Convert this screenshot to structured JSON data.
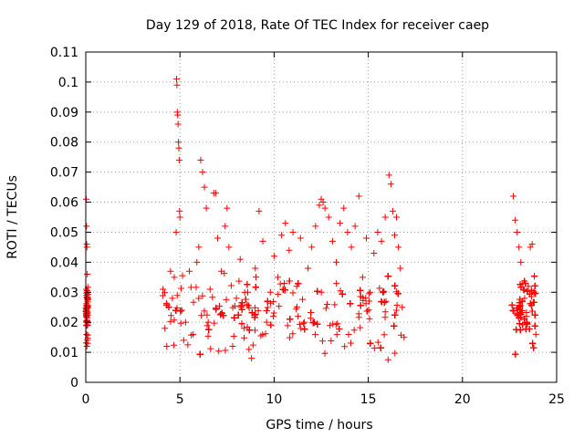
{
  "chart_data": {
    "type": "scatter",
    "title": "Day 129 of 2018, Rate Of TEC Index for receiver caep",
    "xlabel": "GPS time / hours",
    "ylabel": "ROTI / TECUs",
    "xlim": [
      0,
      25
    ],
    "ylim": [
      0,
      0.11
    ],
    "xticks": [
      0,
      5,
      10,
      15,
      20,
      25
    ],
    "xtick_labels": [
      "0",
      "5",
      "10",
      "15",
      "20",
      "25"
    ],
    "yticks": [
      0,
      0.01,
      0.02,
      0.03,
      0.04,
      0.05,
      0.06,
      0.07,
      0.08,
      0.09,
      0.1,
      0.11
    ],
    "ytick_labels": [
      "0",
      "0.01",
      "0.02",
      "0.03",
      "0.04",
      "0.05",
      "0.06",
      "0.07",
      "0.08",
      "0.09",
      "0.1",
      "0.11"
    ],
    "grid": true,
    "marker": "+",
    "series_color": "#ff0000",
    "series": [
      {
        "name": "ROTI",
        "points": [
          [
            0.02,
            0.061
          ],
          [
            0.04,
            0.052
          ],
          [
            0.05,
            0.046
          ],
          [
            0.06,
            0.045
          ],
          [
            0.08,
            0.036
          ],
          [
            0.03,
            0.031
          ],
          [
            0.07,
            0.028
          ],
          [
            0.1,
            0.025
          ],
          [
            0.05,
            0.022
          ],
          [
            0.09,
            0.019
          ],
          [
            0.04,
            0.016
          ],
          [
            0.08,
            0.014
          ],
          [
            0.06,
            0.012
          ],
          [
            0.03,
            0.02
          ],
          [
            0.1,
            0.013
          ],
          [
            4.1,
            0.031
          ],
          [
            4.2,
            0.018
          ],
          [
            4.3,
            0.012
          ],
          [
            4.4,
            0.025
          ],
          [
            4.5,
            0.037
          ],
          [
            4.6,
            0.028
          ],
          [
            4.7,
            0.035
          ],
          [
            4.8,
            0.05
          ],
          [
            4.82,
            0.101
          ],
          [
            4.84,
            0.099
          ],
          [
            4.86,
            0.09
          ],
          [
            4.88,
            0.089
          ],
          [
            4.9,
            0.086
          ],
          [
            4.92,
            0.08
          ],
          [
            4.94,
            0.078
          ],
          [
            4.96,
            0.074
          ],
          [
            4.98,
            0.057
          ],
          [
            5.0,
            0.055
          ],
          [
            5.1,
            0.024
          ],
          [
            5.2,
            0.014
          ],
          [
            5.3,
            0.02
          ],
          [
            5.5,
            0.037
          ],
          [
            5.7,
            0.016
          ],
          [
            5.9,
            0.04
          ],
          [
            6.0,
            0.045
          ],
          [
            6.1,
            0.074
          ],
          [
            6.2,
            0.07
          ],
          [
            6.3,
            0.065
          ],
          [
            6.4,
            0.058
          ],
          [
            6.5,
            0.02
          ],
          [
            6.6,
            0.031
          ],
          [
            6.8,
            0.063
          ],
          [
            6.9,
            0.063
          ],
          [
            7.0,
            0.048
          ],
          [
            7.2,
            0.037
          ],
          [
            7.4,
            0.052
          ],
          [
            7.5,
            0.058
          ],
          [
            7.6,
            0.045
          ],
          [
            7.8,
            0.012
          ],
          [
            8.0,
            0.028
          ],
          [
            8.2,
            0.041
          ],
          [
            8.4,
            0.018
          ],
          [
            8.6,
            0.03
          ],
          [
            8.8,
            0.008
          ],
          [
            9.0,
            0.038
          ],
          [
            9.2,
            0.057
          ],
          [
            9.4,
            0.047
          ],
          [
            9.6,
            0.02
          ],
          [
            9.8,
            0.03
          ],
          [
            10.0,
            0.042
          ],
          [
            10.2,
            0.035
          ],
          [
            10.4,
            0.049
          ],
          [
            10.6,
            0.053
          ],
          [
            10.8,
            0.044
          ],
          [
            11.0,
            0.05
          ],
          [
            11.2,
            0.032
          ],
          [
            11.4,
            0.048
          ],
          [
            11.6,
            0.02
          ],
          [
            11.8,
            0.038
          ],
          [
            12.0,
            0.045
          ],
          [
            12.2,
            0.052
          ],
          [
            12.4,
            0.059
          ],
          [
            12.5,
            0.061
          ],
          [
            12.6,
            0.06
          ],
          [
            12.7,
            0.058
          ],
          [
            12.9,
            0.055
          ],
          [
            13.1,
            0.047
          ],
          [
            13.3,
            0.04
          ],
          [
            13.5,
            0.053
          ],
          [
            13.7,
            0.058
          ],
          [
            13.9,
            0.05
          ],
          [
            14.1,
            0.045
          ],
          [
            14.3,
            0.052
          ],
          [
            14.5,
            0.062
          ],
          [
            14.7,
            0.035
          ],
          [
            14.9,
            0.048
          ],
          [
            15.1,
            0.03
          ],
          [
            15.3,
            0.043
          ],
          [
            15.5,
            0.05
          ],
          [
            15.7,
            0.047
          ],
          [
            15.9,
            0.055
          ],
          [
            16.1,
            0.069
          ],
          [
            16.2,
            0.066
          ],
          [
            16.3,
            0.057
          ],
          [
            16.4,
            0.049
          ],
          [
            16.5,
            0.055
          ],
          [
            16.6,
            0.045
          ],
          [
            16.7,
            0.038
          ],
          [
            16.8,
            0.025
          ],
          [
            16.9,
            0.015
          ],
          [
            22.7,
            0.062
          ],
          [
            22.8,
            0.054
          ],
          [
            22.9,
            0.05
          ],
          [
            23.0,
            0.045
          ],
          [
            23.1,
            0.04
          ],
          [
            23.2,
            0.033
          ],
          [
            23.3,
            0.028
          ],
          [
            23.4,
            0.022
          ],
          [
            23.5,
            0.032
          ],
          [
            23.6,
            0.045
          ],
          [
            23.7,
            0.046
          ],
          [
            23.8,
            0.03
          ],
          [
            23.9,
            0.016
          ]
        ]
      }
    ],
    "dense_bands": [
      {
        "x_range": [
          4.0,
          16.9
        ],
        "y_range": [
          0.005,
          0.04
        ]
      },
      {
        "x_range": [
          22.6,
          23.9
        ],
        "y_range": [
          0.005,
          0.04
        ]
      },
      {
        "x_range": [
          0.0,
          0.12
        ],
        "y_range": [
          0.01,
          0.035
        ]
      }
    ]
  }
}
